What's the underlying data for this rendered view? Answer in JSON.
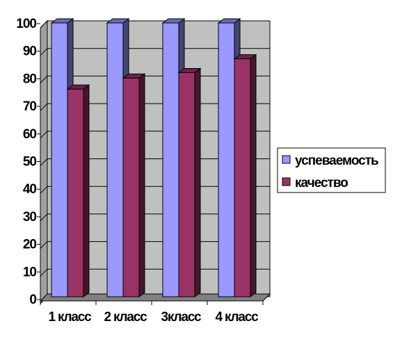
{
  "chart_data": {
    "type": "bar",
    "categories": [
      "1 класс",
      "2 класс",
      "3класс",
      "4 класс"
    ],
    "series": [
      {
        "name": "успеваемость",
        "values": [
          100,
          100,
          100,
          100
        ],
        "color": "#9999ff"
      },
      {
        "name": "качество",
        "values": [
          76,
          80,
          82,
          87
        ],
        "color": "#993366"
      }
    ],
    "yticks": [
      "0",
      "10",
      "20",
      "30",
      "40",
      "50",
      "60",
      "70",
      "80",
      "90",
      "100"
    ],
    "ylim": [
      0,
      100
    ],
    "grid": true,
    "legend": "right",
    "plot_background": "#c0c0c0"
  }
}
